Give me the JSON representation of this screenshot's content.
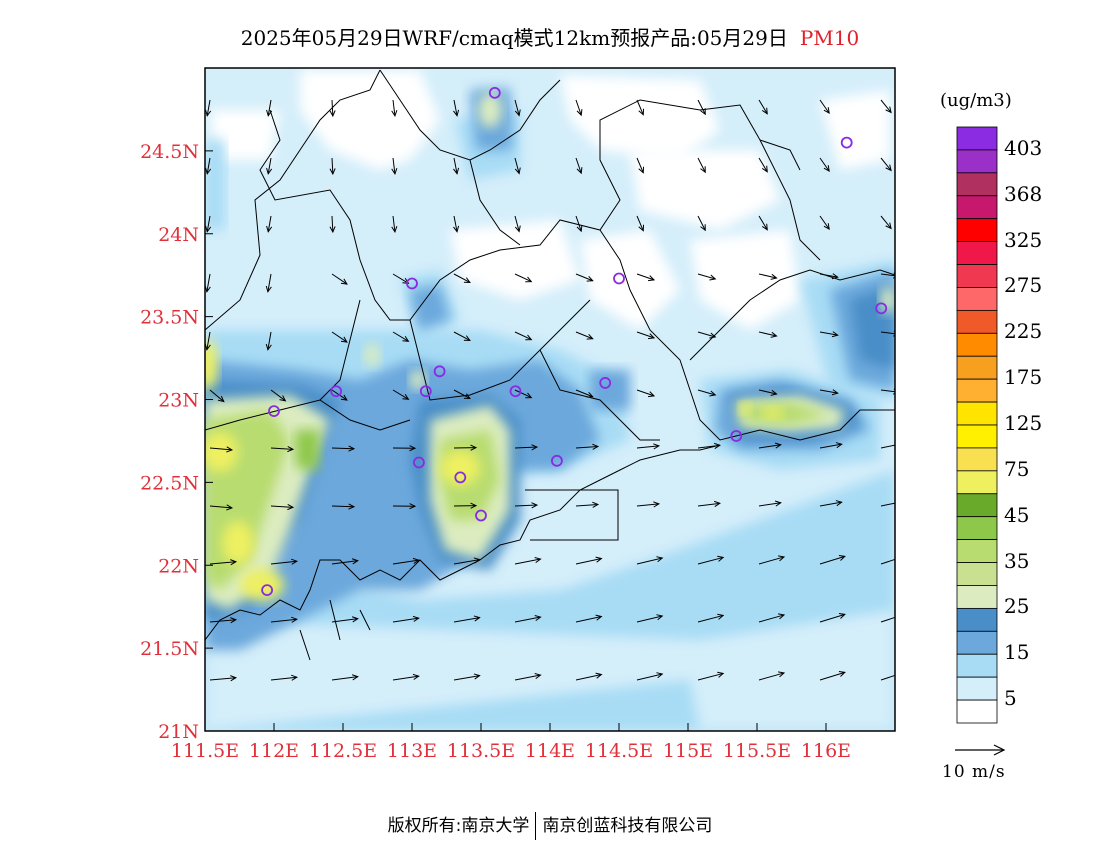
{
  "title": {
    "text": "2025年05月29日WRF/cmaq模式12km预报产品:05月29日",
    "pollutant": "PM10"
  },
  "map": {
    "region": "Guangdong coast (Pearl River Delta)",
    "lon_range": [
      111.5,
      116.5
    ],
    "lat_range": [
      21.0,
      25.0
    ],
    "x_ticks": [
      "111.5E",
      "112E",
      "112.5E",
      "113E",
      "113.5E",
      "114E",
      "114.5E",
      "115E",
      "115.5E",
      "116E"
    ],
    "y_ticks": [
      "21N",
      "21.5N",
      "22N",
      "22.5N",
      "23N",
      "23.5N",
      "24N",
      "24.5N"
    ],
    "tick_color": "#e0303a",
    "station_marker_color": "#8a2be2",
    "stations": [
      {
        "lon": 113.6,
        "lat": 24.85
      },
      {
        "lon": 116.15,
        "lat": 24.55
      },
      {
        "lon": 113.0,
        "lat": 23.7
      },
      {
        "lon": 114.5,
        "lat": 23.73
      },
      {
        "lon": 116.4,
        "lat": 23.55
      },
      {
        "lon": 112.45,
        "lat": 23.05
      },
      {
        "lon": 113.1,
        "lat": 23.05
      },
      {
        "lon": 113.2,
        "lat": 23.17
      },
      {
        "lon": 113.75,
        "lat": 23.05
      },
      {
        "lon": 114.4,
        "lat": 23.1
      },
      {
        "lon": 112.0,
        "lat": 22.93
      },
      {
        "lon": 113.05,
        "lat": 22.62
      },
      {
        "lon": 113.35,
        "lat": 22.53
      },
      {
        "lon": 114.05,
        "lat": 22.63
      },
      {
        "lon": 113.5,
        "lat": 22.3
      },
      {
        "lon": 115.35,
        "lat": 22.78
      },
      {
        "lon": 111.95,
        "lat": 21.85
      }
    ]
  },
  "colorbar": {
    "unit": "(ug/m3)",
    "labels": [
      "403",
      "368",
      "325",
      "275",
      "225",
      "175",
      "125",
      "75",
      "45",
      "35",
      "25",
      "15",
      "5"
    ],
    "colors_top_to_bottom": [
      "#8b2be2",
      "#9b30c8",
      "#b03060",
      "#c8186e",
      "#ff0000",
      "#f01848",
      "#f03850",
      "#ff6868",
      "#f05a28",
      "#ff8c00",
      "#f7a020",
      "#ffb030",
      "#ffe400",
      "#fff000",
      "#f8e050",
      "#eef060",
      "#6aaa2a",
      "#8ec84a",
      "#b8dc70",
      "#c8e090",
      "#dcecc0",
      "#4a8ec8",
      "#6ca8dc",
      "#a8dcf5",
      "#d4eefa",
      "#ffffff"
    ]
  },
  "wind_reference": {
    "label": "10 m/s"
  },
  "footer": {
    "left": "版权所有:南京大学",
    "right": "南京创蓝科技有限公司"
  }
}
